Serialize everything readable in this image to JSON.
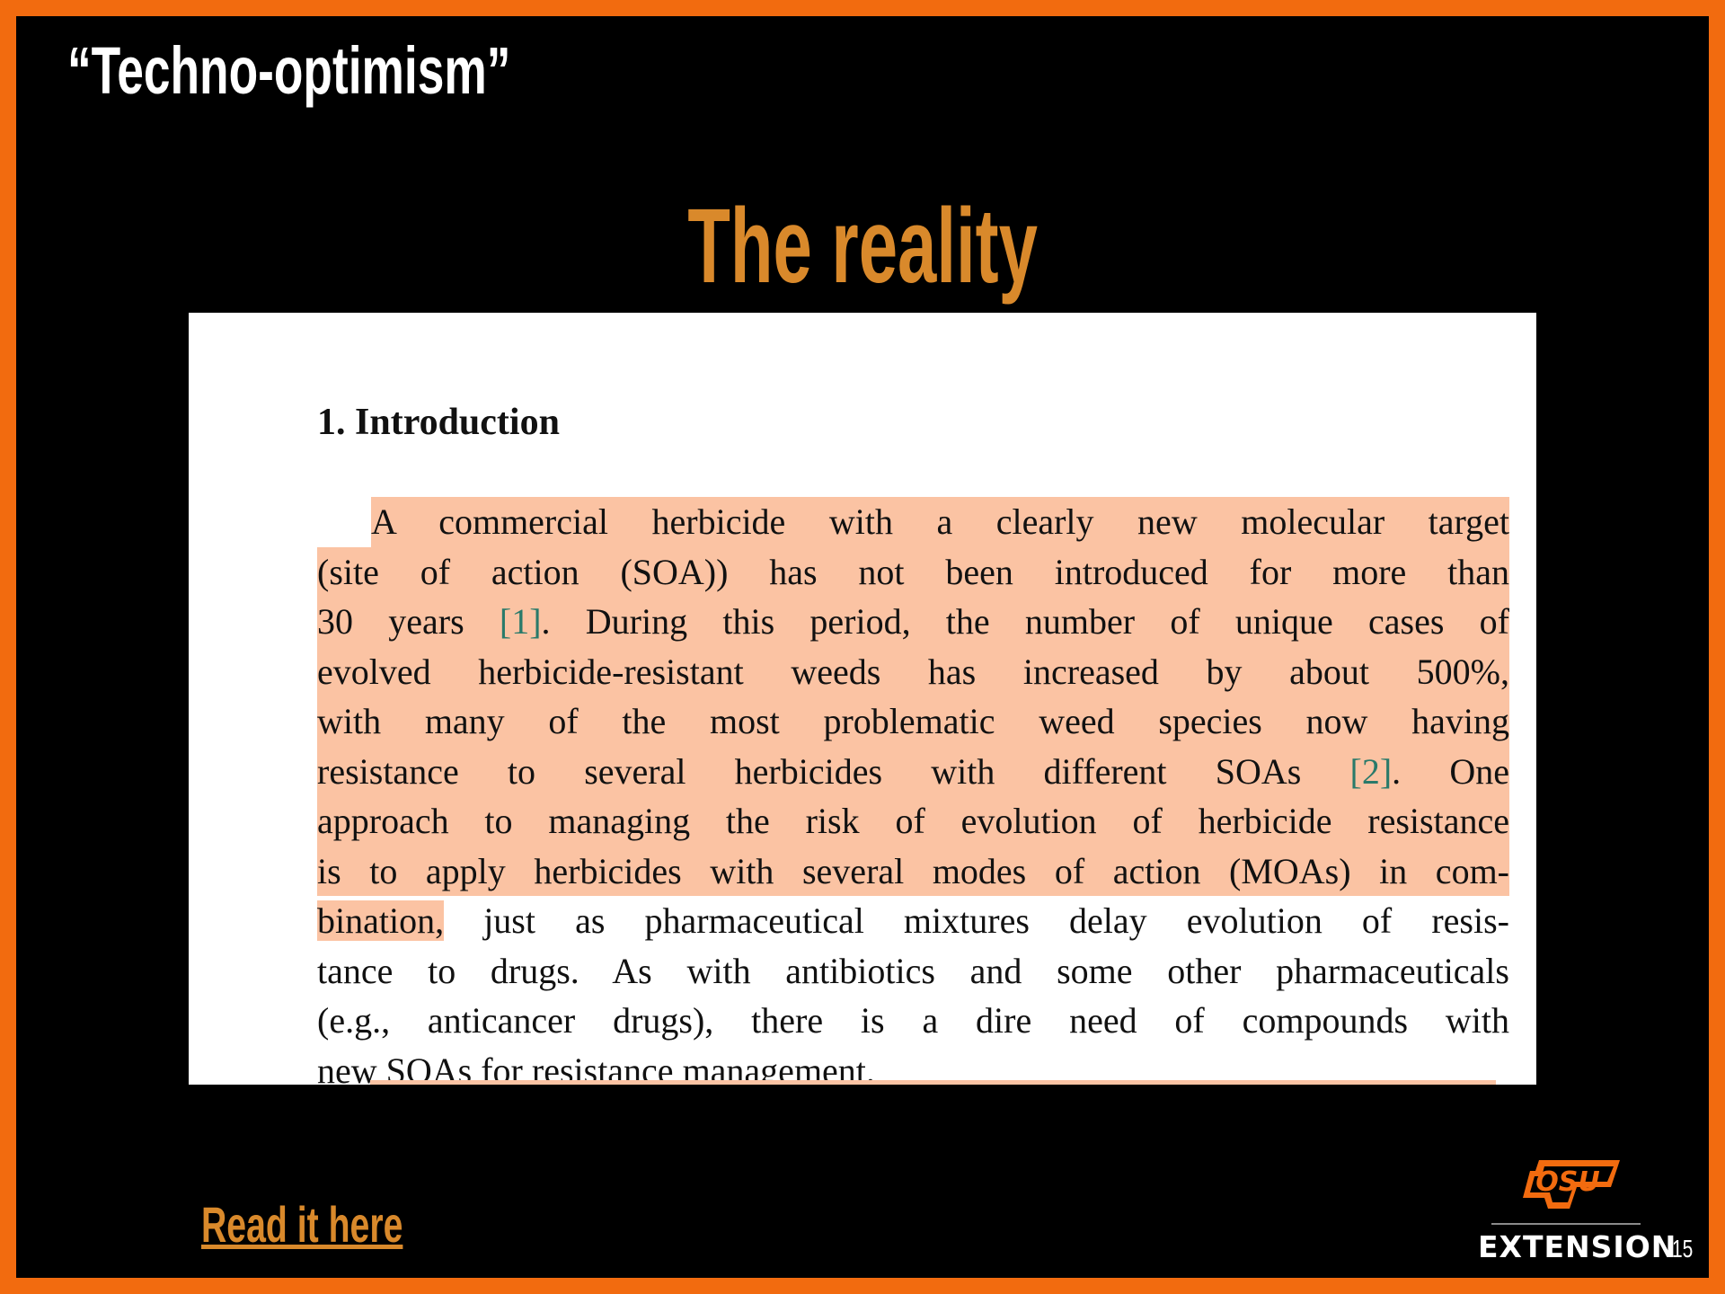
{
  "slide": {
    "title": "“Techno-optimism”",
    "subtitle": "The reality",
    "link_text": "Read it here",
    "page_number": "15",
    "footer_brand": "EXTENSION",
    "logo_text": "OSU",
    "colors": {
      "border": "#f26b0f",
      "accent": "#d9892b",
      "highlight": "#fbc3a3",
      "citation": "#2a7a6a"
    }
  },
  "paper": {
    "heading": "1. Introduction",
    "lines": [
      {
        "style": "full indent",
        "segments": [
          {
            "text": "A commercial herbicide with a clearly new molecular target"
          }
        ]
      },
      {
        "style": "full",
        "segments": [
          {
            "text": "(site of action (SOA)) has not been introduced for more than"
          }
        ]
      },
      {
        "style": "full",
        "segments": [
          {
            "text": "30 years "
          },
          {
            "text": "[1]",
            "cite": true
          },
          {
            "text": ". During this period, the number of unique cases of"
          }
        ]
      },
      {
        "style": "full",
        "segments": [
          {
            "text": "evolved herbicide-resistant weeds has increased by about 500%,"
          }
        ]
      },
      {
        "style": "full",
        "segments": [
          {
            "text": "with many of the most problematic weed species now having"
          }
        ]
      },
      {
        "style": "full",
        "segments": [
          {
            "text": "resistance to several herbicides with different SOAs "
          },
          {
            "text": "[2]",
            "cite": true
          },
          {
            "text": ". One"
          }
        ]
      },
      {
        "style": "full",
        "segments": [
          {
            "text": "approach to managing the risk of evolution of herbicide resistance"
          }
        ]
      },
      {
        "style": "full",
        "segments": [
          {
            "text": "is to apply herbicides with several modes of action (MOAs) in com-"
          }
        ]
      },
      {
        "style": "",
        "segments": [
          {
            "text": "bination,",
            "hl": true
          },
          {
            "text": " just as pharmaceutical mixtures delay evolution of resis-"
          }
        ]
      },
      {
        "style": "",
        "segments": [
          {
            "text": "tance to drugs. As with antibiotics and some other pharmaceuticals"
          }
        ]
      },
      {
        "style": "",
        "segments": [
          {
            "text": "(e.g., anticancer drugs), there is a dire need of compounds with"
          }
        ]
      },
      {
        "style": "last",
        "segments": [
          {
            "text": "new SOAs for resistance management."
          }
        ]
      }
    ]
  }
}
